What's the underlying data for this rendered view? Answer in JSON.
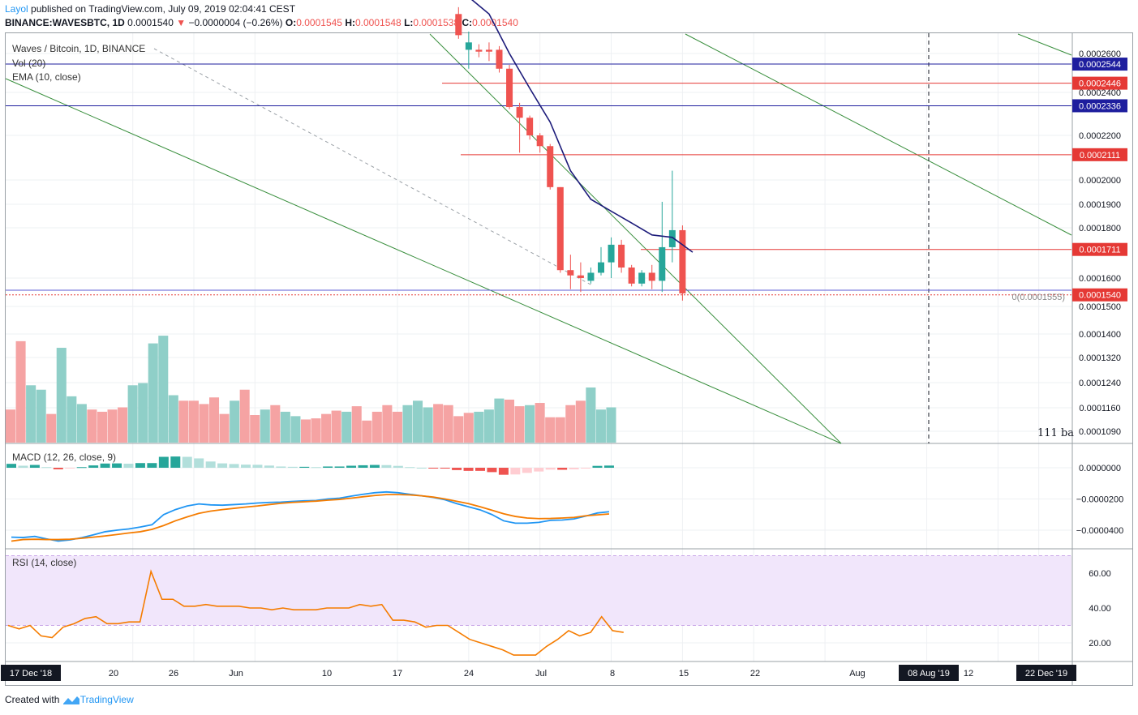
{
  "header": {
    "author": "Layol",
    "published": "published on TradingView.com, July 09, 2019 02:04:41 CEST",
    "symbol": "BINANCE:WAVESBTC, 1D",
    "last": "0.0001540",
    "change_arrow": "▼",
    "change": "−0.0000004 (−0.26%)",
    "o_label": "O:",
    "o": "0.0001545",
    "h_label": "H:",
    "h": "0.0001548",
    "l_label": "L:",
    "l": "0.0001538",
    "c_label": "C:",
    "c": "0.0001540"
  },
  "legends": {
    "main": "Waves / Bitcoin, 1D, BINANCE",
    "vol": "Vol (20)",
    "ema": "EMA (10, close)",
    "macd": "MACD (12, 26, close, 9)",
    "rsi": "RSI (14, close)",
    "bars_label": "111 ba",
    "level_annotation": "0(0.0001555)"
  },
  "colors": {
    "up": "#26a69a",
    "down": "#ef5350",
    "up_vol": "#8fcfc8",
    "down_vol": "#f5a3a3",
    "ema": "#1c1b7a",
    "macd": "#2196f3",
    "signal": "#f57c00",
    "rsi": "#f57c00",
    "rsi_band": "#f1e6fb",
    "blue_line": "#1e1e9e",
    "red_line": "#e53935",
    "trend": "#388e3c",
    "axis_blue": "#1e1e9e",
    "axis_red": "#e53935"
  },
  "footer": {
    "created_with": "Created with",
    "brand": "TradingView"
  },
  "chart_data": [
    {
      "type": "candlestick",
      "title": "Waves / Bitcoin, 1D, BINANCE",
      "y_ticks": [
        0.00026,
        0.00024,
        0.00022,
        0.0002,
        0.00019,
        0.00018,
        0.00016,
        0.00015,
        0.00014,
        0.000132,
        0.000124,
        0.000116,
        0.000109
      ],
      "y_tick_labels": [
        "0.0002600",
        "0.0002400",
        "0.0002200",
        "0.0002000",
        "0.0001900",
        "0.0001800",
        "0.0001600",
        "0.0001500",
        "0.0001400",
        "0.0001320",
        "0.0001240",
        "0.0001160",
        "0.0001090"
      ],
      "x_tick_labels": [
        "17 Dec '18",
        "20",
        "26",
        "Jun",
        "10",
        "17",
        "24",
        "Jul",
        "8",
        "15",
        "22",
        "Aug",
        "08 Aug '19",
        "12",
        "22 Dec '19"
      ],
      "x_tick_day_index": [
        -40,
        -26,
        -20,
        -14,
        0,
        7,
        14,
        21,
        28,
        35,
        42,
        52,
        59,
        63,
        73
      ],
      "candles": [
        {
          "d": 6,
          "o": 0.000282,
          "h": 0.000286,
          "l": 0.000268,
          "c": 0.00027
        },
        {
          "d": 7,
          "o": 0.000262,
          "h": 0.000272,
          "l": 0.000252,
          "c": 0.000266
        },
        {
          "d": 8,
          "o": 0.000262,
          "h": 0.000265,
          "l": 0.000258,
          "c": 0.000261
        },
        {
          "d": 9,
          "o": 0.000262,
          "h": 0.000266,
          "l": 0.000256,
          "c": 0.000261
        },
        {
          "d": 10,
          "o": 0.000262,
          "h": 0.000264,
          "l": 0.00025,
          "c": 0.000252
        },
        {
          "d": 11,
          "o": 0.000252,
          "h": 0.000254,
          "l": 0.000232,
          "c": 0.000233
        },
        {
          "d": 12,
          "o": 0.000233,
          "h": 0.000235,
          "l": 0.000212,
          "c": 0.000228
        },
        {
          "d": 13,
          "o": 0.000228,
          "h": 0.000229,
          "l": 0.000218,
          "c": 0.00022
        },
        {
          "d": 14,
          "o": 0.00022,
          "h": 0.000221,
          "l": 0.000212,
          "c": 0.000215
        },
        {
          "d": 15,
          "o": 0.000215,
          "h": 0.000216,
          "l": 0.000196,
          "c": 0.000197
        },
        {
          "d": 16,
          "o": 0.000197,
          "h": 0.000197,
          "l": 0.000162,
          "c": 0.000163
        },
        {
          "d": 17,
          "o": 0.000163,
          "h": 0.000169,
          "l": 0.000156,
          "c": 0.000161
        },
        {
          "d": 18,
          "o": 0.000161,
          "h": 0.000166,
          "l": 0.000155,
          "c": 0.00016
        },
        {
          "d": 19,
          "o": 0.000159,
          "h": 0.000164,
          "l": 0.000158,
          "c": 0.000162
        },
        {
          "d": 20,
          "o": 0.000162,
          "h": 0.000172,
          "l": 0.000161,
          "c": 0.000166
        },
        {
          "d": 21,
          "o": 0.000166,
          "h": 0.000176,
          "l": 0.00016,
          "c": 0.000173
        },
        {
          "d": 22,
          "o": 0.000173,
          "h": 0.000175,
          "l": 0.000162,
          "c": 0.000164
        },
        {
          "d": 23,
          "o": 0.000164,
          "h": 0.000165,
          "l": 0.000157,
          "c": 0.000158
        },
        {
          "d": 24,
          "o": 0.000158,
          "h": 0.000163,
          "l": 0.000157,
          "c": 0.000162
        },
        {
          "d": 25,
          "o": 0.000162,
          "h": 0.000165,
          "l": 0.000156,
          "c": 0.000159
        },
        {
          "d": 26,
          "o": 0.000159,
          "h": 0.000191,
          "l": 0.000155,
          "c": 0.000172
        },
        {
          "d": 27,
          "o": 0.000172,
          "h": 0.000204,
          "l": 0.000166,
          "c": 0.000179
        },
        {
          "d": 28,
          "o": 0.000179,
          "h": 0.000181,
          "l": 0.000152,
          "c": 0.0001545
        }
      ],
      "ema_10": [
        {
          "d": 7,
          "v": 0.000292
        },
        {
          "d": 9,
          "v": 0.000282
        },
        {
          "d": 11,
          "v": 0.00026
        },
        {
          "d": 13,
          "v": 0.000242
        },
        {
          "d": 15,
          "v": 0.000226
        },
        {
          "d": 17,
          "v": 0.000204
        },
        {
          "d": 19,
          "v": 0.000192
        },
        {
          "d": 21,
          "v": 0.000187
        },
        {
          "d": 23,
          "v": 0.000182
        },
        {
          "d": 25,
          "v": 0.000177
        },
        {
          "d": 27,
          "v": 0.000176
        },
        {
          "d": 28,
          "v": 0.000173
        },
        {
          "d": 29,
          "v": 0.00017
        }
      ],
      "horizontal_levels": [
        {
          "value": 0.0002544,
          "label": "0.0002544",
          "color": "blue"
        },
        {
          "value": 0.0002446,
          "label": "0.0002446",
          "color": "red"
        },
        {
          "value": 0.0002336,
          "label": "0.0002336",
          "color": "blue"
        },
        {
          "value": 0.0002111,
          "label": "0.0002111",
          "color": "red"
        },
        {
          "value": 0.0001711,
          "label": "0.0001711",
          "color": "red"
        },
        {
          "value": 0.000154,
          "label": "0.0001540",
          "color": "red"
        }
      ],
      "volume": [
        30,
        92,
        52,
        48,
        26,
        86,
        42,
        35,
        30,
        28,
        30,
        32,
        52,
        54,
        90,
        97,
        43,
        38,
        38,
        35,
        41,
        26,
        38,
        48,
        25,
        30,
        34,
        28,
        24,
        21,
        22,
        26,
        29,
        28,
        33,
        20,
        28,
        34,
        28,
        34,
        38,
        32,
        35,
        34,
        24,
        27,
        28,
        30,
        40,
        39,
        33,
        34,
        36,
        23,
        23,
        34,
        38,
        50,
        30,
        32,
        29,
        29,
        26,
        21,
        23,
        14,
        20,
        94,
        114,
        80
      ],
      "volume_up": [
        false,
        false,
        true,
        true,
        false,
        true,
        true,
        true,
        false,
        false,
        false,
        false,
        true,
        true,
        true,
        true,
        true,
        false,
        false,
        false,
        false,
        false,
        true,
        false,
        false,
        true,
        false,
        true,
        true,
        false,
        false,
        false,
        false,
        true,
        false,
        false,
        false,
        false,
        false,
        true,
        true,
        true,
        false,
        false,
        false,
        false,
        true,
        true,
        true,
        false,
        false,
        true,
        false,
        false,
        false,
        false,
        false,
        true,
        true,
        true,
        true,
        false,
        false,
        false,
        false,
        false,
        true,
        true,
        true,
        false
      ]
    },
    {
      "type": "line",
      "title": "MACD (12, 26, close, 9)",
      "y_ticks": [
        0.0,
        -2e-05,
        -4e-05
      ],
      "y_tick_labels": [
        "0.0000000",
        "−0.0000200",
        "−0.0000400"
      ],
      "series": [
        {
          "name": "MACD",
          "values": [
            -4.45e-05,
            -4.47e-05,
            -4.4e-05,
            -4.56e-05,
            -4.7e-05,
            -4.62e-05,
            -4.48e-05,
            -4.3e-05,
            -4.1e-05,
            -4e-05,
            -3.92e-05,
            -3.8e-05,
            -3.65e-05,
            -3e-05,
            -2.68e-05,
            -2.45e-05,
            -2.32e-05,
            -2.38e-05,
            -2.4e-05,
            -2.36e-05,
            -2.32e-05,
            -2.26e-05,
            -2.22e-05,
            -2.2e-05,
            -2.16e-05,
            -2.12e-05,
            -2.1e-05,
            -2e-05,
            -1.95e-05,
            -1.82e-05,
            -1.7e-05,
            -1.6e-05,
            -1.55e-05,
            -1.6e-05,
            -1.7e-05,
            -1.8e-05,
            -1.9e-05,
            -2.05e-05,
            -2.3e-05,
            -2.5e-05,
            -2.7e-05,
            -3e-05,
            -3.4e-05,
            -3.55e-05,
            -3.55e-05,
            -3.5e-05,
            -3.37e-05,
            -3.35e-05,
            -3.28e-05,
            -3.1e-05,
            -2.9e-05,
            -2.82e-05
          ]
        },
        {
          "name": "Signal",
          "values": [
            -4.7e-05,
            -4.6e-05,
            -4.58e-05,
            -4.6e-05,
            -4.6e-05,
            -4.58e-05,
            -4.52e-05,
            -4.45e-05,
            -4.37e-05,
            -4.28e-05,
            -4.18e-05,
            -4.1e-05,
            -3.95e-05,
            -3.7e-05,
            -3.4e-05,
            -3.15e-05,
            -2.92e-05,
            -2.78e-05,
            -2.68e-05,
            -2.6e-05,
            -2.52e-05,
            -2.45e-05,
            -2.36e-05,
            -2.28e-05,
            -2.22e-05,
            -2.18e-05,
            -2.14e-05,
            -2.08e-05,
            -2.03e-05,
            -1.95e-05,
            -1.86e-05,
            -1.78e-05,
            -1.72e-05,
            -1.72e-05,
            -1.74e-05,
            -1.8e-05,
            -1.88e-05,
            -2e-05,
            -2.15e-05,
            -2.3e-05,
            -2.5e-05,
            -2.72e-05,
            -2.95e-05,
            -3.12e-05,
            -3.22e-05,
            -3.26e-05,
            -3.25e-05,
            -3.22e-05,
            -3.18e-05,
            -3.08e-05,
            -3.02e-05,
            -2.96e-05
          ]
        },
        {
          "name": "Histogram",
          "values": [
            2.5e-06,
            1.3e-06,
            1.8e-06,
            4e-07,
            -1e-06,
            -4e-07,
            4e-07,
            1.5e-06,
            2.7e-06,
            2.8e-06,
            2.6e-06,
            3e-06,
            3e-06,
            7e-06,
            7.2e-06,
            7e-06,
            6e-06,
            4e-06,
            2.8e-06,
            2.4e-06,
            2e-06,
            1.9e-06,
            1.4e-06,
            8e-07,
            6e-07,
            6e-07,
            4e-07,
            8e-07,
            8e-07,
            1.3e-06,
            1.6e-06,
            1.8e-06,
            1.7e-06,
            1.2e-06,
            4e-07,
            0.0,
            -2e-07,
            -5e-07,
            -1.5e-06,
            -2e-06,
            -2e-06,
            -2.8e-06,
            -4.5e-06,
            -4.3e-06,
            -3.3e-06,
            -2.4e-06,
            -1.2e-06,
            -1.3e-06,
            -1e-06,
            -2e-07,
            1.2e-06,
            1.4e-06
          ]
        }
      ]
    },
    {
      "type": "line",
      "title": "RSI (14, close)",
      "y_ticks": [
        60,
        40,
        20
      ],
      "y_tick_labels": [
        "60.00",
        "40.00",
        "20.00"
      ],
      "band": [
        30,
        70
      ],
      "series": [
        {
          "name": "RSI",
          "values": [
            30,
            28,
            30,
            24,
            23,
            29,
            31,
            34,
            35,
            31,
            31,
            32,
            32,
            61,
            45,
            45,
            41,
            41,
            42,
            41,
            41,
            41,
            40,
            40,
            39,
            40,
            39,
            39,
            39,
            40,
            40,
            40,
            42,
            41,
            42,
            33,
            33,
            32,
            29,
            30,
            30,
            26,
            22,
            20,
            18,
            16,
            13,
            13,
            13,
            18,
            22,
            27,
            24,
            26,
            35,
            27,
            26
          ]
        }
      ]
    }
  ]
}
